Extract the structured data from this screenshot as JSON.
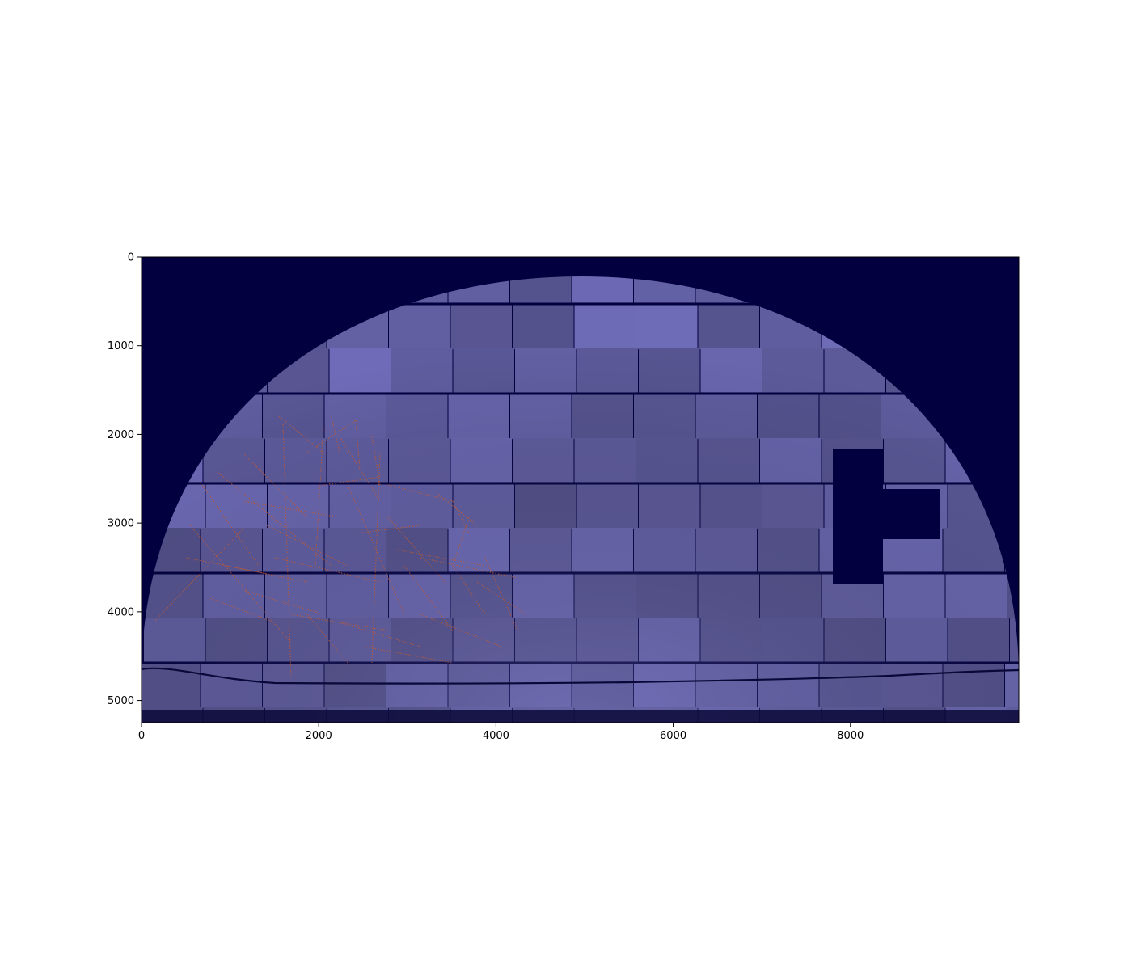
{
  "figure": {
    "background": "#ffffff",
    "plot_background": "#02003f",
    "mosaic_tile_color": "#6562a8",
    "trace_color": "#c85a2a",
    "dark_line_color": "#0a0838"
  },
  "chart_data": {
    "type": "image",
    "title": "",
    "xlabel": "",
    "ylabel": "",
    "xlim": [
      0,
      9900
    ],
    "ylim": [
      5250,
      0
    ],
    "x_ticks": [
      0,
      2000,
      4000,
      6000,
      8000
    ],
    "y_ticks": [
      0,
      1000,
      2000,
      3000,
      4000,
      5000
    ],
    "x_tick_labels": [
      "0",
      "2000",
      "4000",
      "6000",
      "8000"
    ],
    "y_tick_labels": [
      "0",
      "1000",
      "2000",
      "3000",
      "4000",
      "5000"
    ],
    "image_description_tags": [
      "stitched-microscopy-mosaic",
      "half-dome",
      "red-traced-filaments"
    ]
  }
}
